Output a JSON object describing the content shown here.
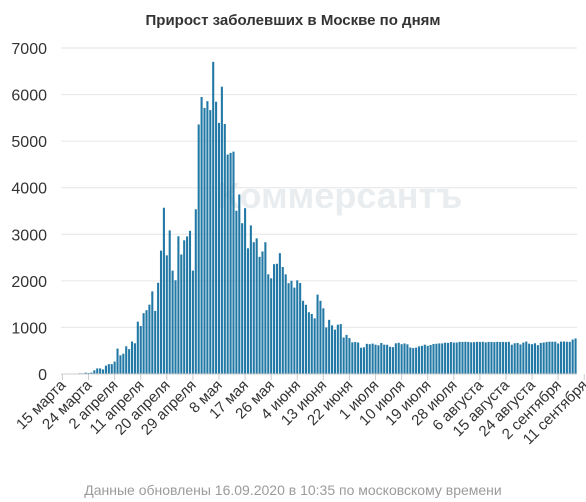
{
  "chart_data": {
    "type": "bar",
    "title": "Прирост заболевших в Москве по дням",
    "footer": "Данные обновлены 16.09.2020 в 10:35 по московскому времени",
    "watermark": "Коммерсантъ",
    "xlabel": "",
    "ylabel": "",
    "ylim": [
      0,
      7000
    ],
    "yticks": [
      0,
      1000,
      2000,
      3000,
      4000,
      5000,
      6000,
      7000
    ],
    "grid": "horizontal",
    "legend": "none",
    "bar_color": "#2379a6",
    "x_tick_labels": [
      "15 марта",
      "24 марта",
      "2 апреля",
      "11 апреля",
      "20 апреля",
      "29 апреля",
      "8 мая",
      "17 мая",
      "26 мая",
      "4 июня",
      "13 июня",
      "22 июня",
      "1 июля",
      "10 июля",
      "19 июля",
      "28 июля",
      "6 августа",
      "15 августа",
      "24 августа",
      "2 сентября",
      "11 сентября"
    ],
    "x_tick_every": 9,
    "start_label": "15 марта",
    "values": [
      6,
      0,
      3,
      0,
      8,
      3,
      16,
      15,
      29,
      21,
      31,
      79,
      120,
      120,
      97,
      179,
      212,
      212,
      267,
      546,
      401,
      436,
      595,
      534,
      697,
      660,
      1124,
      1030,
      1306,
      1370,
      1489,
      1774,
      1355,
      1959,
      2649,
      3570,
      2548,
      3083,
      2220,
      2013,
      2957,
      2566,
      2871,
      2954,
      3075,
      2220,
      3537,
      5358,
      5948,
      5714,
      5858,
      5667,
      6703,
      5846,
      5392,
      6169,
      5369,
      4712,
      4748,
      4775,
      3505,
      3855,
      3238,
      3561,
      2699,
      3190,
      2830,
      2913,
      2516,
      2631,
      2830,
      2140,
      2054,
      2358,
      2367,
      2595,
      2297,
      2140,
      1951,
      2001,
      1855,
      2011,
      1953,
      1572,
      1486,
      1326,
      1289,
      1195,
      1704,
      1572,
      1410,
      1000,
      1163,
      1045,
      953,
      1059,
      1071,
      784,
      840,
      772,
      680,
      686,
      676,
      564,
      573,
      648,
      640,
      653,
      630,
      617,
      665,
      630,
      628,
      585,
      576,
      660,
      670,
      640,
      656,
      637,
      569,
      557,
      566,
      593,
      605,
      630,
      605,
      623,
      645,
      650,
      657,
      657,
      672,
      667,
      686,
      675,
      676,
      690,
      689,
      692,
      688,
      680,
      684,
      691,
      689,
      691,
      679,
      689,
      687,
      685,
      690,
      686,
      688,
      685,
      691,
      629,
      660,
      667,
      635,
      675,
      697,
      651,
      640,
      660,
      619,
      667,
      676,
      686,
      693,
      694,
      693,
      656,
      695,
      698,
      692,
      690,
      740,
      763
    ]
  }
}
